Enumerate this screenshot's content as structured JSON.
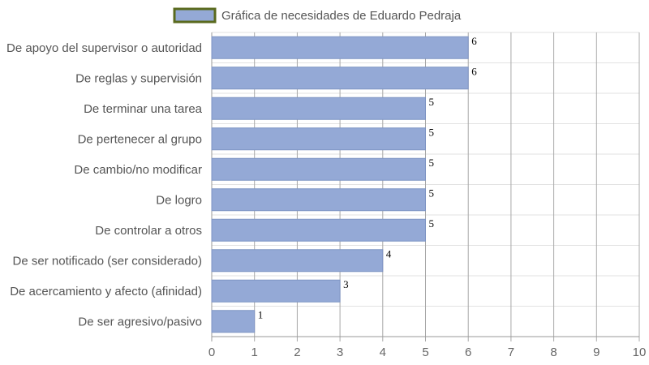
{
  "chart_data": {
    "type": "bar",
    "orientation": "horizontal",
    "legend": "top",
    "grid": true,
    "xlim": [
      0,
      10
    ],
    "x_ticks": [
      "0",
      "1",
      "2",
      "3",
      "4",
      "5",
      "6",
      "7",
      "8",
      "9",
      "10"
    ],
    "categories": [
      "De apoyo del supervisor o autoridad",
      "De reglas y supervisión",
      "De terminar una tarea",
      "De pertenecer al grupo",
      "De cambio/no modificar",
      "De logro",
      "De controlar a otros",
      "De ser notificado (ser considerado)",
      "De acercamiento y afecto (afinidad)",
      "De ser agresivo/pasivo"
    ],
    "series": [
      {
        "name": "Gráfica de necesidades de Eduardo Pedraja",
        "values": [
          6,
          6,
          5,
          5,
          5,
          5,
          5,
          4,
          3,
          1
        ],
        "labels": [
          "6",
          "6",
          "5",
          "5",
          "5",
          "5",
          "5",
          "4",
          "3",
          "1"
        ]
      }
    ]
  },
  "colors": {
    "bar_fill": "#94a9d6",
    "bar_stroke": "#7f95c4",
    "legend_border": "#5a6a1e",
    "grid_vertical": "#a8a8a8",
    "grid_horizontal": "#e2e2e2",
    "axis": "#999999"
  }
}
